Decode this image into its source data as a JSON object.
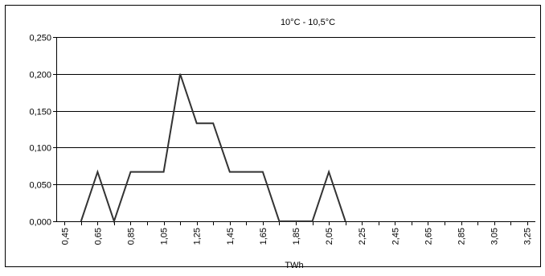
{
  "chart_data": {
    "type": "line",
    "title": "10°C  -  10,5°C",
    "xlabel": "TWh",
    "ylabel": "",
    "ylim": [
      0,
      0.25
    ],
    "xlim": [
      0.4,
      3.3
    ],
    "grid": "horizontal",
    "legend": "none",
    "line_color": "#333333",
    "y_ticks": [
      {
        "value": 0.0,
        "label": "0,000"
      },
      {
        "value": 0.05,
        "label": "0,050"
      },
      {
        "value": 0.1,
        "label": "0,100"
      },
      {
        "value": 0.15,
        "label": "0,150"
      },
      {
        "value": 0.2,
        "label": "0,200"
      },
      {
        "value": 0.25,
        "label": "0,250"
      }
    ],
    "x_ticks": [
      {
        "value": 0.45,
        "label": "0,45"
      },
      {
        "value": 0.65,
        "label": "0,65"
      },
      {
        "value": 0.85,
        "label": "0,85"
      },
      {
        "value": 1.05,
        "label": "1,05"
      },
      {
        "value": 1.25,
        "label": "1,25"
      },
      {
        "value": 1.45,
        "label": "1,45"
      },
      {
        "value": 1.65,
        "label": "1,65"
      },
      {
        "value": 1.85,
        "label": "1,85"
      },
      {
        "value": 2.05,
        "label": "2,05"
      },
      {
        "value": 2.25,
        "label": "2,25"
      },
      {
        "value": 2.45,
        "label": "2,45"
      },
      {
        "value": 2.65,
        "label": "2,65"
      },
      {
        "value": 2.85,
        "label": "2,85"
      },
      {
        "value": 3.05,
        "label": "3,05"
      },
      {
        "value": 3.25,
        "label": "3,25"
      }
    ],
    "series": [
      {
        "x": [
          0.55,
          0.65,
          0.75,
          0.85,
          0.95,
          1.05,
          1.15,
          1.25,
          1.35,
          1.45,
          1.55,
          1.65,
          1.75,
          1.85,
          1.95,
          2.05,
          2.15
        ],
        "y": [
          0.0,
          0.067,
          0.0,
          0.067,
          0.067,
          0.067,
          0.2,
          0.133,
          0.133,
          0.067,
          0.067,
          0.067,
          0.0,
          0.0,
          0.0,
          0.067,
          0.0
        ]
      }
    ]
  }
}
